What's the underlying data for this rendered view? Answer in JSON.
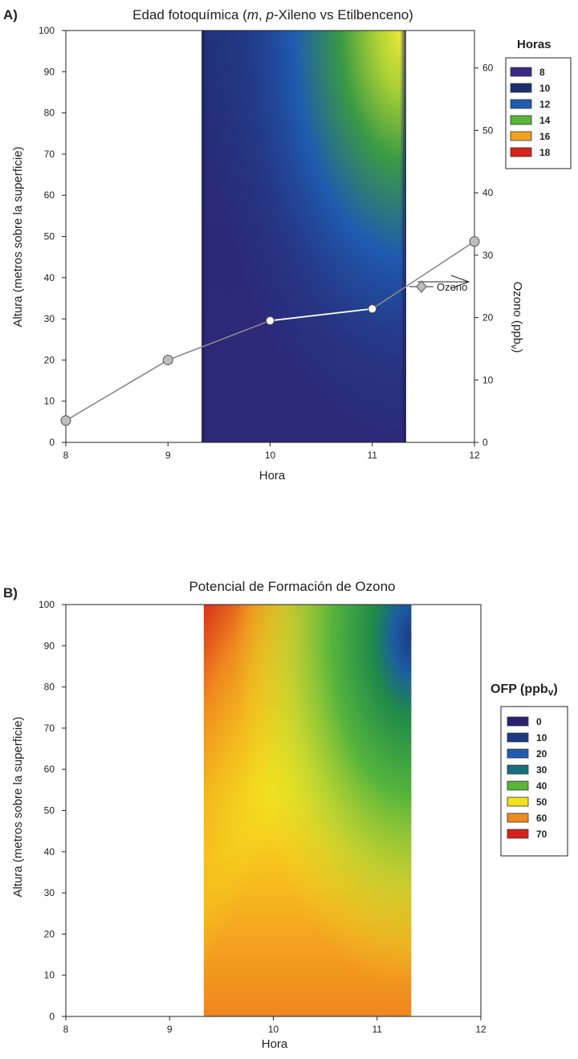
{
  "chart_data": [
    {
      "type": "heatmap",
      "panel_label": "A)",
      "title": "Edad fotoquímica (m, p-Xileno vs Etilbenceno)",
      "title_parts": {
        "prefix": "Edad fotoquímica (",
        "m": "m",
        "sep": ", ",
        "p": "p",
        "suffix": "-Xileno vs Etilbenceno)"
      },
      "xlabel": "Hora",
      "ylabel": "Altura (metros sobre la superficie)",
      "y2label": "Ozono (ppb",
      "y2label_sub": "v",
      "y2label_close": ")",
      "xlim": [
        8,
        12
      ],
      "ylim": [
        0,
        100
      ],
      "y2lim": [
        0,
        66
      ],
      "x_ticks": [
        "8",
        "9",
        "10",
        "11",
        "12"
      ],
      "y_ticks": [
        "0",
        "10",
        "20",
        "30",
        "40",
        "50",
        "60",
        "70",
        "80",
        "90",
        "100"
      ],
      "y2_ticks": [
        "0",
        "10",
        "20",
        "30",
        "40",
        "50",
        "60"
      ],
      "data_range_x": [
        9.33,
        11.33
      ],
      "grid": false,
      "legend": {
        "title": "Horas",
        "position": "top-right",
        "items": [
          {
            "label": "8",
            "color": "#3a2a85"
          },
          {
            "label": "10",
            "color": "#1c2f6e"
          },
          {
            "label": "12",
            "color": "#1f5bb0"
          },
          {
            "label": "14",
            "color": "#5ab638"
          },
          {
            "label": "16",
            "color": "#f2a21f"
          },
          {
            "label": "18",
            "color": "#d8231b"
          }
        ]
      },
      "series": [
        {
          "name": "Ozono",
          "axis": "y2",
          "x": [
            8,
            9,
            10,
            11,
            12
          ],
          "values": [
            3.5,
            13.2,
            19.5,
            21.4,
            32.2
          ]
        }
      ],
      "annotation": "arrow pointing to right axis"
    },
    {
      "type": "heatmap",
      "panel_label": "B)",
      "title": "Potencial de Formación de Ozono",
      "xlabel": "Hora",
      "ylabel": "Altura (metros sobre la superficie)",
      "xlim": [
        8,
        12
      ],
      "ylim": [
        0,
        100
      ],
      "x_ticks": [
        "8",
        "9",
        "10",
        "11",
        "12"
      ],
      "y_ticks": [
        "0",
        "10",
        "20",
        "30",
        "40",
        "50",
        "60",
        "70",
        "80",
        "90",
        "100"
      ],
      "data_range_x": [
        9.33,
        11.33
      ],
      "grid": false,
      "legend": {
        "title": "OFP (ppb",
        "title_sub": "v",
        "title_close": ")",
        "position": "right",
        "items": [
          {
            "label": "0",
            "color": "#2a2170"
          },
          {
            "label": "10",
            "color": "#1d3a86"
          },
          {
            "label": "20",
            "color": "#1f5bb0"
          },
          {
            "label": "30",
            "color": "#15707c"
          },
          {
            "label": "40",
            "color": "#5ab638"
          },
          {
            "label": "50",
            "color": "#f2e21e"
          },
          {
            "label": "60",
            "color": "#ef8a1e"
          },
          {
            "label": "70",
            "color": "#d8231b"
          }
        ]
      }
    }
  ]
}
